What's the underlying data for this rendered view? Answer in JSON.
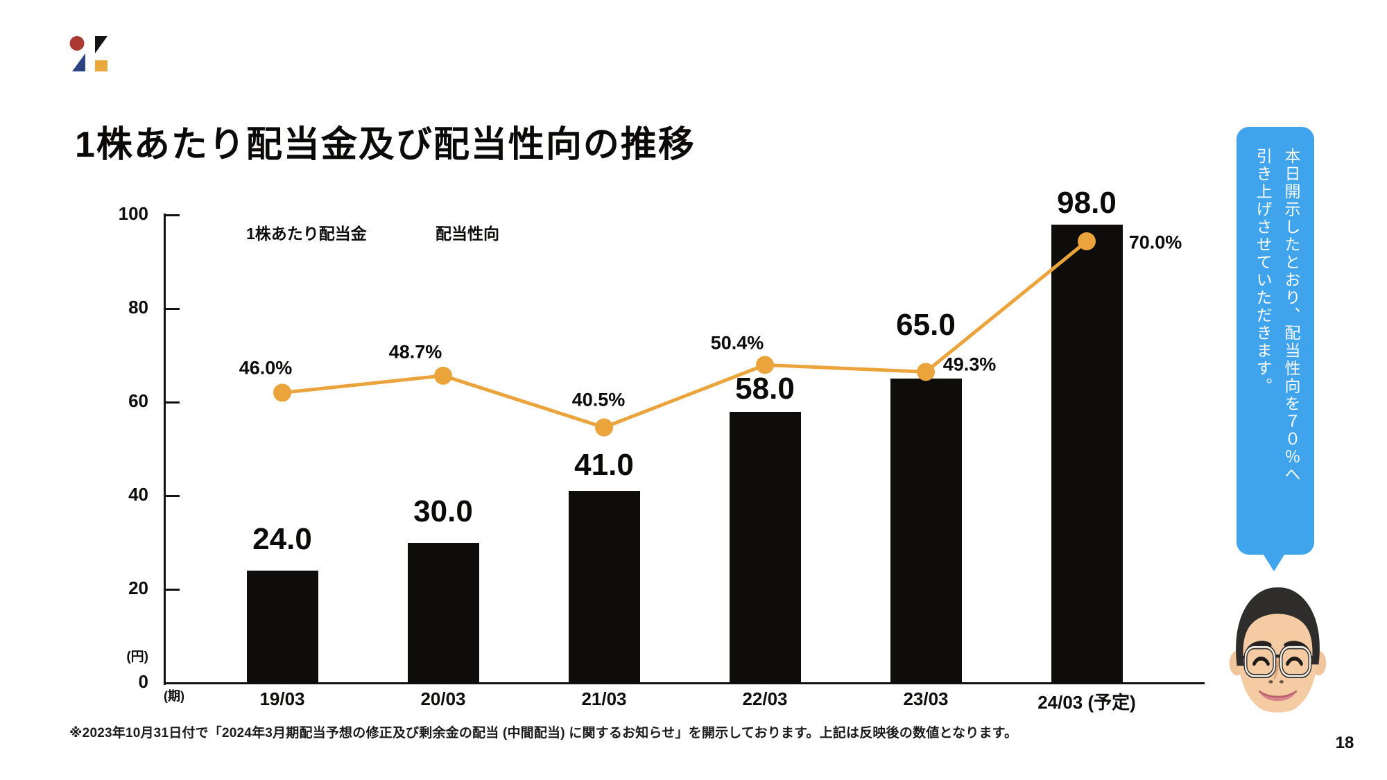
{
  "slide": {
    "title": "1株あたり配当金及び配当性向の推移",
    "footnote": "※2023年10月31日付で「2024年3月期配当予想の修正及び剰余金の配当 (中間配当) に関するお知らせ」を開示しております。上記は反映後の数値となります。",
    "page_number": "18"
  },
  "logo": {
    "red": "#a93b33",
    "black": "#161413",
    "navy": "#2b4381",
    "yellow": "#e9a83b"
  },
  "legend": {
    "bar_label": "1株あたり配当金",
    "line_label": "配当性向"
  },
  "speech_bubble": {
    "line1": "本日開示したとおり、配当性向を７０％へ",
    "line2": "引き上げさせていただきます。",
    "bg_color": "#3fa4ec",
    "text_color": "#ffffff"
  },
  "chart_data": {
    "type": "bar+line combo",
    "categories": [
      "19/03",
      "20/03",
      "21/03",
      "22/03",
      "23/03",
      "24/03 (予定)"
    ],
    "series": [
      {
        "name": "1株あたり配当金",
        "type": "bar",
        "unit": "円",
        "values": [
          24.0,
          30.0,
          41.0,
          58.0,
          65.0,
          98.0
        ],
        "labels": [
          "24.0",
          "30.0",
          "41.0",
          "58.0",
          "65.0",
          "98.0"
        ],
        "color": "#0e0d0c"
      },
      {
        "name": "配当性向",
        "type": "line",
        "unit": "%",
        "values": [
          46.0,
          48.7,
          40.5,
          50.4,
          49.3,
          70.0
        ],
        "labels": [
          "46.0%",
          "48.7%",
          "40.5%",
          "50.4%",
          "49.3%",
          "70.0%"
        ],
        "color": "#eba33c"
      }
    ],
    "y_axis": {
      "unit_label": "(円)",
      "ticks": [
        "0",
        "20",
        "40",
        "60",
        "80",
        "100"
      ],
      "tick_values": [
        0,
        20,
        40,
        60,
        80,
        100
      ],
      "min": 0,
      "max": 100
    },
    "x_axis": {
      "unit_label": "(期)"
    },
    "legend_position": "top-left-inside",
    "grid": "ticks-only"
  }
}
